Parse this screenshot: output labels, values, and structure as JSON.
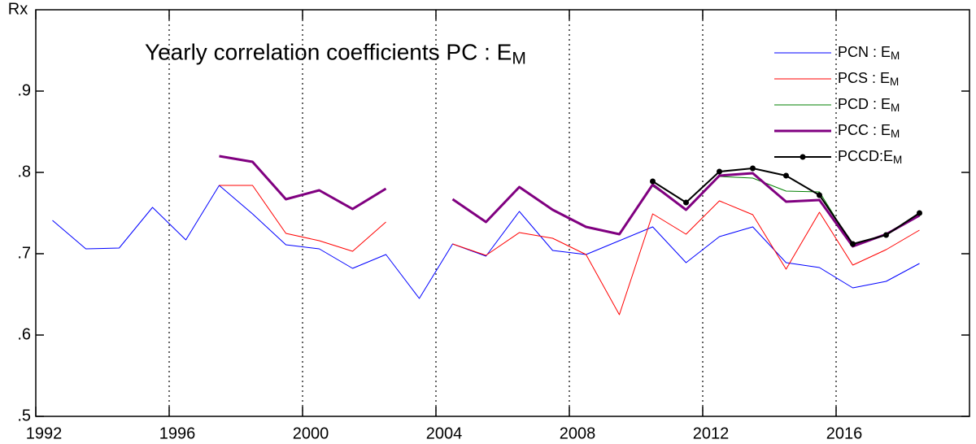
{
  "chart_data": {
    "type": "line",
    "title": "Yearly correlation coefficients  PC : EM",
    "y_label": "Rx",
    "x": [
      1992,
      1993,
      1994,
      1995,
      1996,
      1997,
      1998,
      1999,
      2000,
      2001,
      2002,
      2003,
      2004,
      2005,
      2006,
      2007,
      2008,
      2009,
      2010,
      2011,
      2012,
      2013,
      2014,
      2015,
      2016,
      2017,
      2018
    ],
    "xlim": [
      1992,
      2020
    ],
    "xticks": [
      1992,
      1996,
      2000,
      2004,
      2008,
      2012,
      2016
    ],
    "ylim": [
      0.5,
      1.0
    ],
    "yticks": [
      {
        "value": 0.5,
        "label": ".5"
      },
      {
        "value": 0.6,
        "label": ".6"
      },
      {
        "value": 0.7,
        "label": ".7"
      },
      {
        "value": 0.8,
        "label": ".8"
      },
      {
        "value": 0.9,
        "label": ".9"
      }
    ],
    "grid": "x-dotted",
    "legend": "upper right",
    "series": [
      {
        "name": "PCN : EM",
        "color": "#0000ff",
        "width": 1,
        "values": [
          0.741,
          0.706,
          0.707,
          0.757,
          0.717,
          0.784,
          0.749,
          0.711,
          0.706,
          0.682,
          0.699,
          0.645,
          0.712,
          0.697,
          0.752,
          0.704,
          0.699,
          0.716,
          0.733,
          0.689,
          0.721,
          0.733,
          0.689,
          0.683,
          0.658,
          0.666,
          0.688
        ]
      },
      {
        "name": "PCS : EM",
        "color": "#ff0000",
        "width": 1,
        "values": [
          null,
          null,
          null,
          null,
          null,
          0.784,
          0.784,
          0.725,
          0.716,
          0.703,
          0.739,
          null,
          0.712,
          0.698,
          0.726,
          0.719,
          0.699,
          0.625,
          0.749,
          0.724,
          0.765,
          0.748,
          0.681,
          0.751,
          0.686,
          0.705,
          0.729
        ]
      },
      {
        "name": "PCD : EM",
        "color": "#008000",
        "width": 1,
        "values": [
          null,
          null,
          null,
          null,
          null,
          null,
          null,
          null,
          null,
          null,
          null,
          null,
          null,
          null,
          null,
          null,
          null,
          null,
          0.783,
          0.755,
          0.795,
          0.793,
          0.777,
          0.776,
          0.71,
          0.724,
          0.748
        ]
      },
      {
        "name": "PCC : EM",
        "color": "#800080",
        "width": 3,
        "values": [
          null,
          null,
          null,
          null,
          null,
          0.82,
          0.813,
          0.767,
          0.778,
          0.755,
          0.78,
          null,
          0.767,
          0.739,
          0.782,
          0.754,
          0.733,
          0.724,
          0.785,
          0.754,
          0.796,
          0.799,
          0.764,
          0.766,
          0.709,
          0.724,
          0.747
        ]
      },
      {
        "name": "PCCD:EM",
        "color": "#000000",
        "width": 2,
        "markers": true,
        "values": [
          null,
          null,
          null,
          null,
          null,
          null,
          null,
          null,
          null,
          null,
          null,
          null,
          null,
          null,
          null,
          null,
          null,
          null,
          0.789,
          0.763,
          0.801,
          0.805,
          0.796,
          0.772,
          0.712,
          0.723,
          0.75
        ]
      }
    ]
  }
}
